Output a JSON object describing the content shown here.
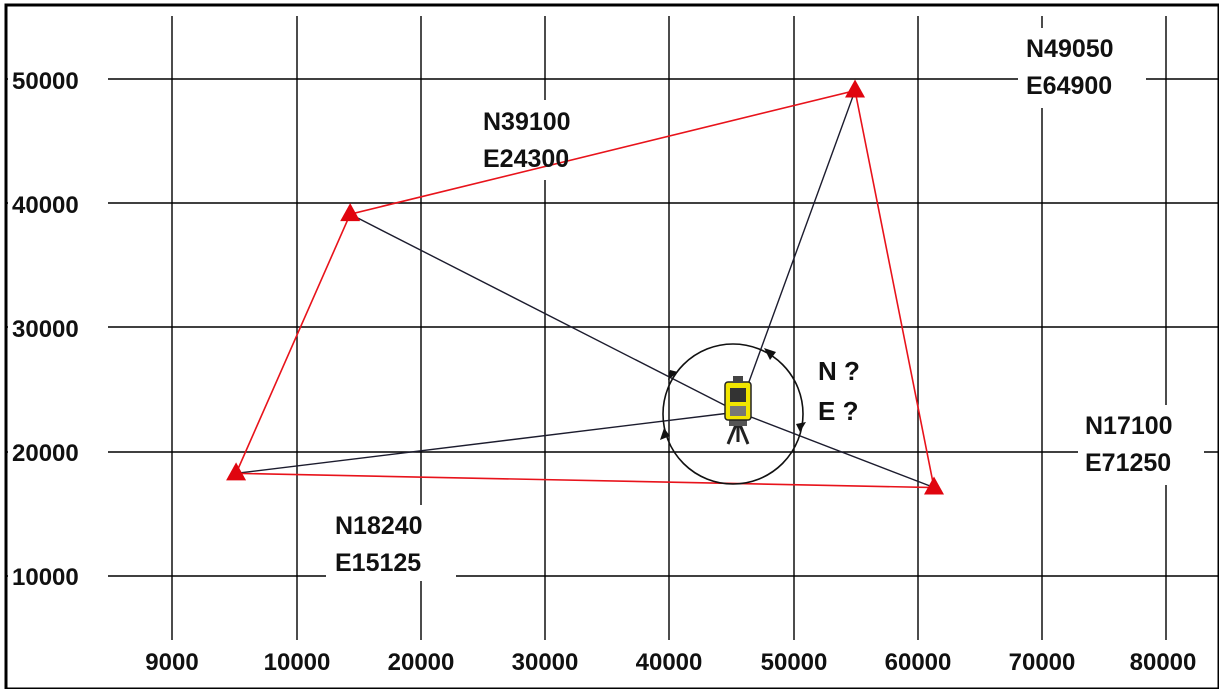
{
  "colors": {
    "grid": "#000000",
    "boundary": "#e8131b",
    "sightline": "#1c1c2e",
    "marker": "#e0050f",
    "instrument_body": "#f2e600",
    "instrument_dark": "#222222"
  },
  "axis": {
    "x_ticks": [
      "9000",
      "10000",
      "20000",
      "30000",
      "40000",
      "50000",
      "60000",
      "70000",
      "80000"
    ],
    "y_ticks": [
      "50000",
      "40000",
      "30000",
      "20000",
      "10000"
    ]
  },
  "stations": [
    {
      "id": "A",
      "northing": 18240,
      "easting": 15125,
      "label_n": "N18240",
      "label_e": "E15125"
    },
    {
      "id": "B",
      "northing": 39100,
      "easting": 24300,
      "label_n": "N39100",
      "label_e": "E24300"
    },
    {
      "id": "C",
      "northing": 49050,
      "easting": 64900,
      "label_n": "N49050",
      "label_e": "E64900"
    },
    {
      "id": "D",
      "northing": 17100,
      "easting": 71250,
      "label_n": "N17100",
      "label_e": "E71250"
    }
  ],
  "instrument": {
    "icon": "total-station-icon",
    "label_n": "N ?",
    "label_e": "E ?"
  }
}
